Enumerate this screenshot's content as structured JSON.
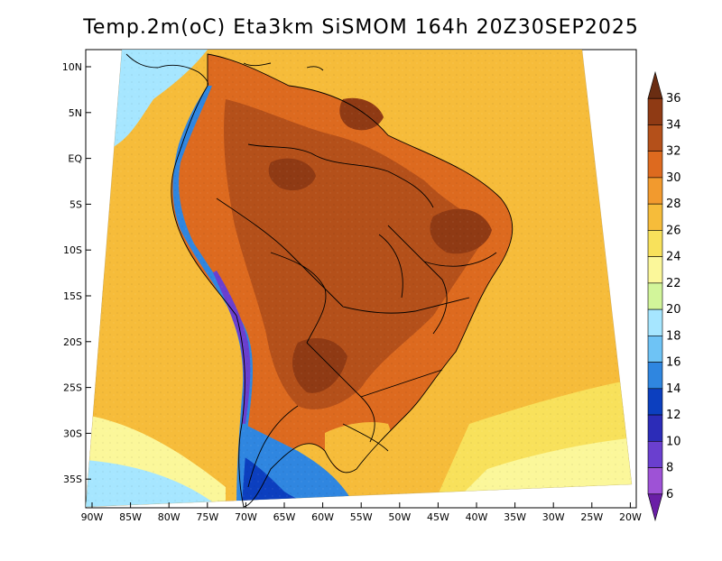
{
  "title": "Temp.2m(oC) Eta3km SiSMOM 164h 20Z30SEP2025",
  "map": {
    "lat_ticks": [
      "10N",
      "5N",
      "EQ",
      "5S",
      "10S",
      "15S",
      "20S",
      "25S",
      "30S",
      "35S"
    ],
    "lon_ticks": [
      "90W",
      "85W",
      "80W",
      "75W",
      "70W",
      "65W",
      "60W",
      "55W",
      "50W",
      "45W",
      "40W",
      "35W",
      "30W",
      "25W",
      "20W"
    ]
  },
  "colorbar": {
    "labels": [
      "36",
      "34",
      "32",
      "30",
      "28",
      "26",
      "24",
      "22",
      "20",
      "18",
      "16",
      "14",
      "12",
      "10",
      "8",
      "6"
    ],
    "colors": [
      "#6a2d12",
      "#8f3a14",
      "#b4501a",
      "#dd6a1f",
      "#f29a2e",
      "#f6bc3a",
      "#f8e15b",
      "#fbf79a",
      "#d2f59a",
      "#a6e6ff",
      "#6ec3f5",
      "#2f86e0",
      "#0c3fbf",
      "#2c2cb8",
      "#6a3fcf",
      "#9e52d6",
      "#6a1fa6"
    ]
  },
  "palette": {
    "ocean_warm": "#f6bc3a",
    "ocean_mid": "#f8e15b",
    "ocean_cool": "#fbf79a",
    "ocean_cold": "#a6e6ff",
    "land_hot": "#dd6a1f",
    "land_very_hot": "#b4501a",
    "land_extreme": "#8f3a14",
    "andes_cold": "#2f86e0",
    "andes_very_cold": "#6a3fcf",
    "coast_line": "#000000"
  }
}
